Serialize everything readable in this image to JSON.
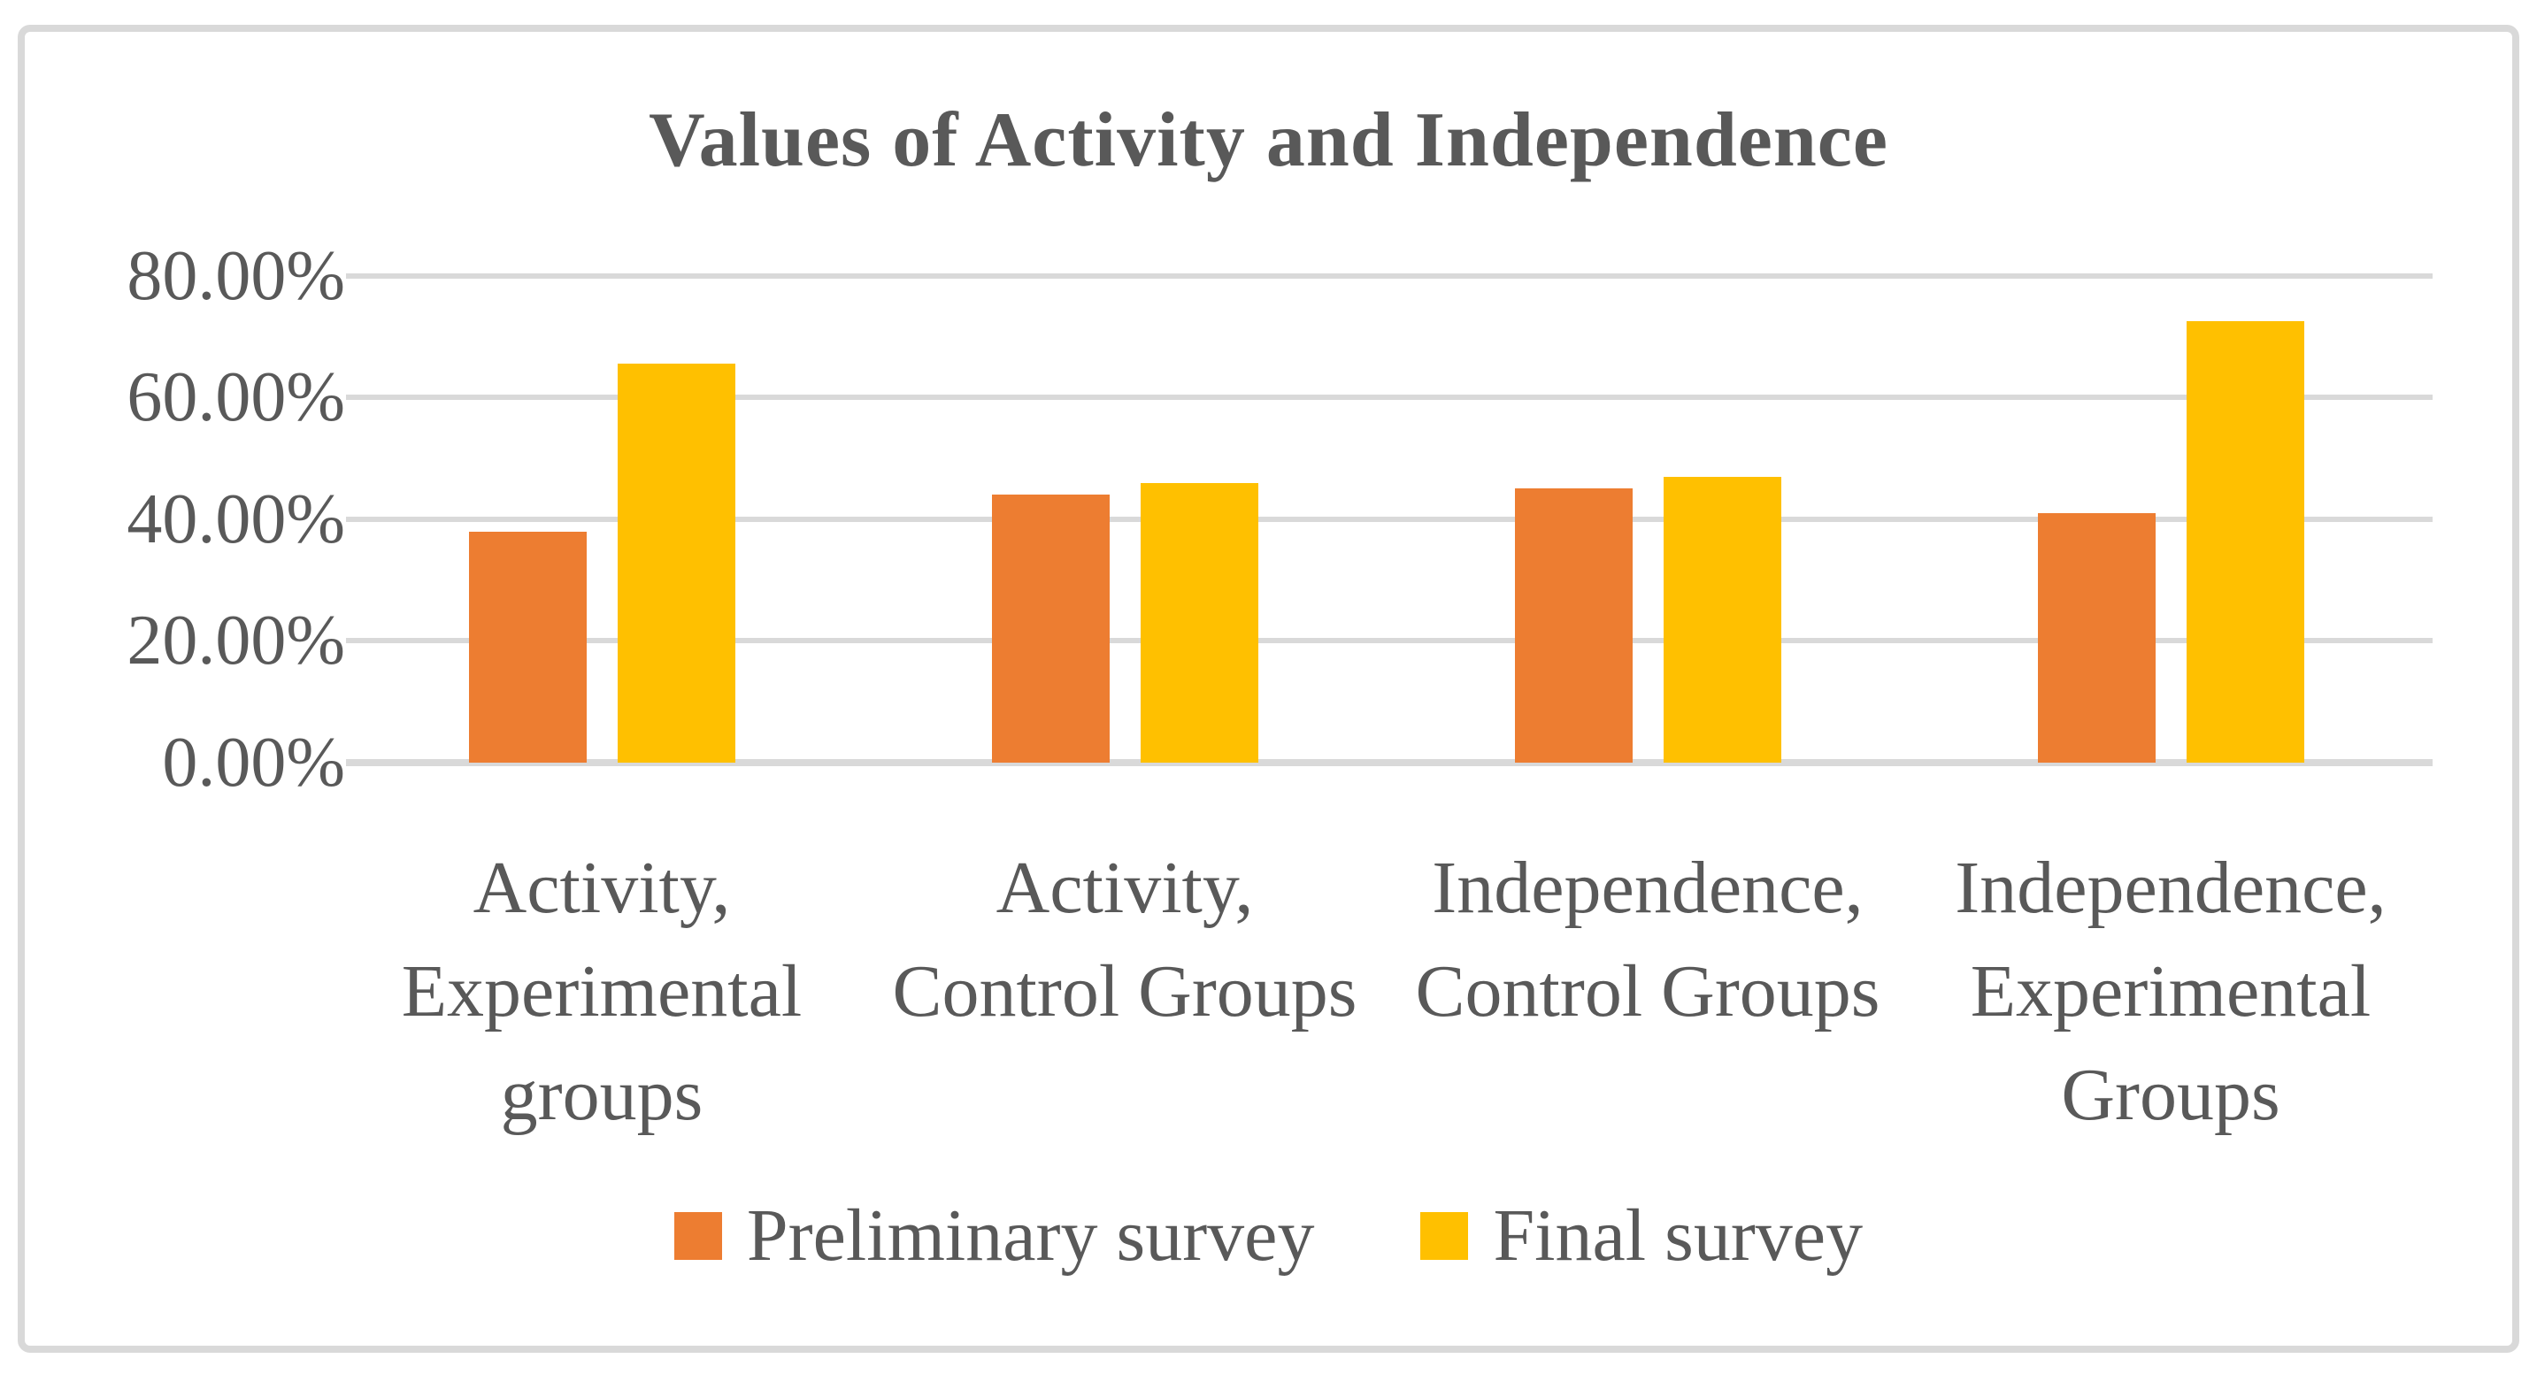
{
  "chart_data": {
    "type": "bar",
    "title": "Values of Activity and Independence",
    "categories": [
      "Activity, Experimental groups",
      "Activity, Control Groups",
      "Independence, Control Groups",
      "Independence, Experimental Groups"
    ],
    "category_label_lines": [
      [
        "Activity,",
        "Experimental",
        "groups"
      ],
      [
        "Activity,",
        "Control Groups"
      ],
      [
        "Independence,",
        "Control Groups"
      ],
      [
        "Independence,",
        "Experimental",
        "Groups"
      ]
    ],
    "series": [
      {
        "name": "Preliminary survey",
        "color": "#ED7D31",
        "values_pct": [
          38,
          44,
          45,
          41
        ]
      },
      {
        "name": "Final survey",
        "color": "#FFC000",
        "values_pct": [
          65.5,
          46,
          47,
          72.5
        ]
      }
    ],
    "y_axis": {
      "tick_labels": [
        "80.00%",
        "60.00%",
        "40.00%",
        "20.00%",
        "0.00%"
      ],
      "tick_values": [
        80,
        60,
        40,
        20,
        0
      ],
      "ylim": [
        0,
        80
      ],
      "format": "percent"
    },
    "legend_position": "bottom",
    "grid": true
  },
  "styles": {
    "text_color": "#595959",
    "gridline_color": "#D9D9D9",
    "frame_border_color": "#D9D9D9",
    "background": "#FFFFFF"
  }
}
